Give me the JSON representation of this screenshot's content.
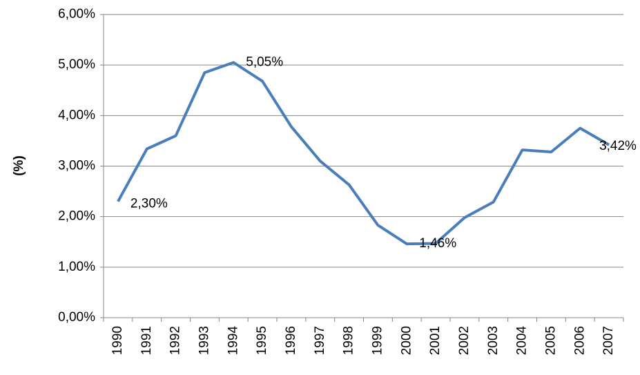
{
  "chart_data": {
    "type": "line",
    "y_label": "(%)",
    "categories": [
      "1990",
      "1991",
      "1992",
      "1993",
      "1994",
      "1995",
      "1996",
      "1997",
      "1998",
      "1999",
      "2000",
      "2001",
      "2002",
      "2003",
      "2004",
      "2005",
      "2006",
      "2007"
    ],
    "series": [
      {
        "color": "#4a7ebb",
        "values": [
          2.3,
          3.34,
          3.6,
          4.85,
          5.05,
          4.68,
          3.78,
          3.1,
          2.63,
          1.83,
          1.46,
          1.47,
          1.98,
          2.29,
          3.32,
          3.28,
          3.75,
          3.42
        ],
        "value_labels": [
          "2,30%",
          null,
          null,
          null,
          "5,05%",
          null,
          null,
          null,
          null,
          null,
          "1,46%",
          null,
          null,
          null,
          null,
          null,
          null,
          "3,42%"
        ]
      }
    ],
    "ylim": [
      0,
      6
    ],
    "yticks": [
      {
        "value": 0,
        "label": "0,00%"
      },
      {
        "value": 1,
        "label": "1,00%"
      },
      {
        "value": 2,
        "label": "2,00%"
      },
      {
        "value": 3,
        "label": "3,00%"
      },
      {
        "value": 4,
        "label": "4,00%"
      },
      {
        "value": 5,
        "label": "5,00%"
      },
      {
        "value": 6,
        "label": "6,00%"
      }
    ],
    "grid": true
  }
}
